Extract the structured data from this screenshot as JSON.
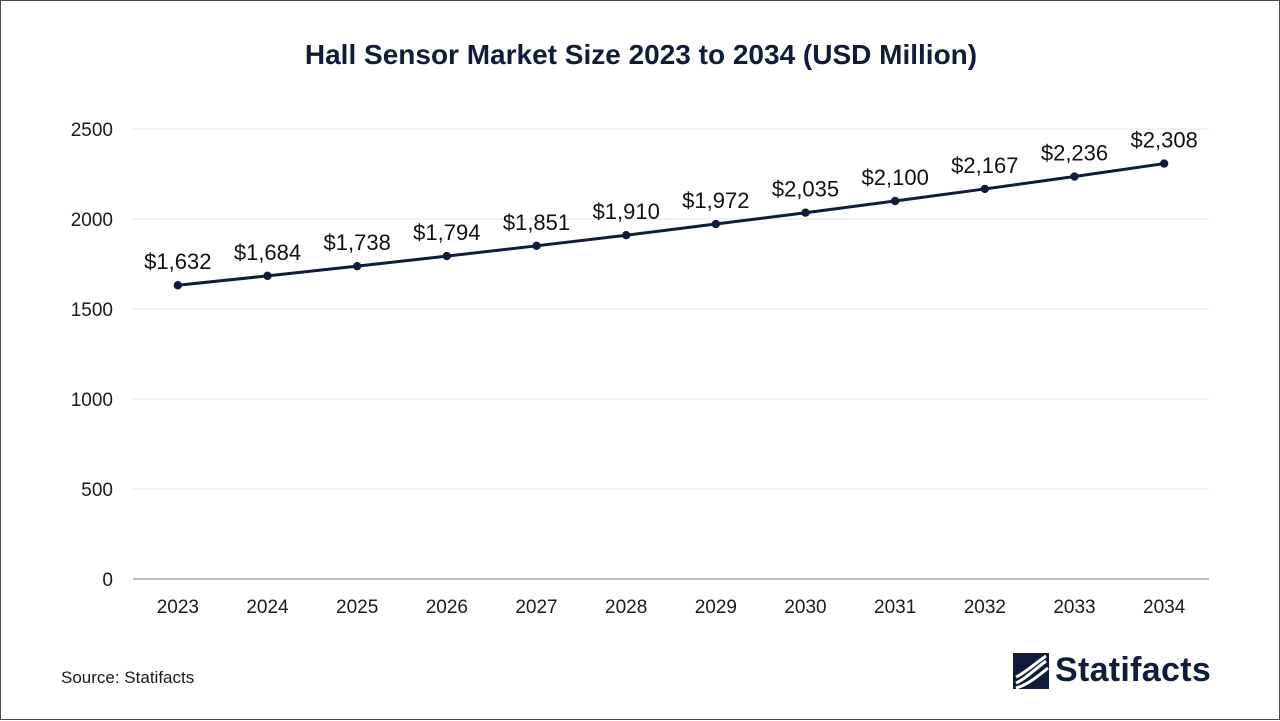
{
  "chart_data": {
    "type": "line",
    "title": "Hall Sensor Market Size 2023 to 2034 (USD Million)",
    "categories": [
      "2023",
      "2024",
      "2025",
      "2026",
      "2027",
      "2028",
      "2029",
      "2030",
      "2031",
      "2032",
      "2033",
      "2034"
    ],
    "values": [
      1632,
      1684,
      1738,
      1794,
      1851,
      1910,
      1972,
      2035,
      2100,
      2167,
      2236,
      2308
    ],
    "data_labels": [
      "$1,632",
      "$1,684",
      "$1,738",
      "$1,794",
      "$1,851",
      "$1,910",
      "$1,972",
      "$2,035",
      "$2,100",
      "$2,167",
      "$2,236",
      "$2,308"
    ],
    "yticks": [
      "0",
      "500",
      "1000",
      "1500",
      "2000",
      "2500"
    ],
    "ylim": [
      0,
      2500
    ],
    "xlabel": "",
    "ylabel": "",
    "grid": true,
    "legend": "none",
    "line_color": "#0f1d3a"
  },
  "footer": {
    "source": "Source: Statifacts",
    "brand": "Statifacts"
  },
  "icons": {
    "logo": "statifacts-logo-icon"
  }
}
